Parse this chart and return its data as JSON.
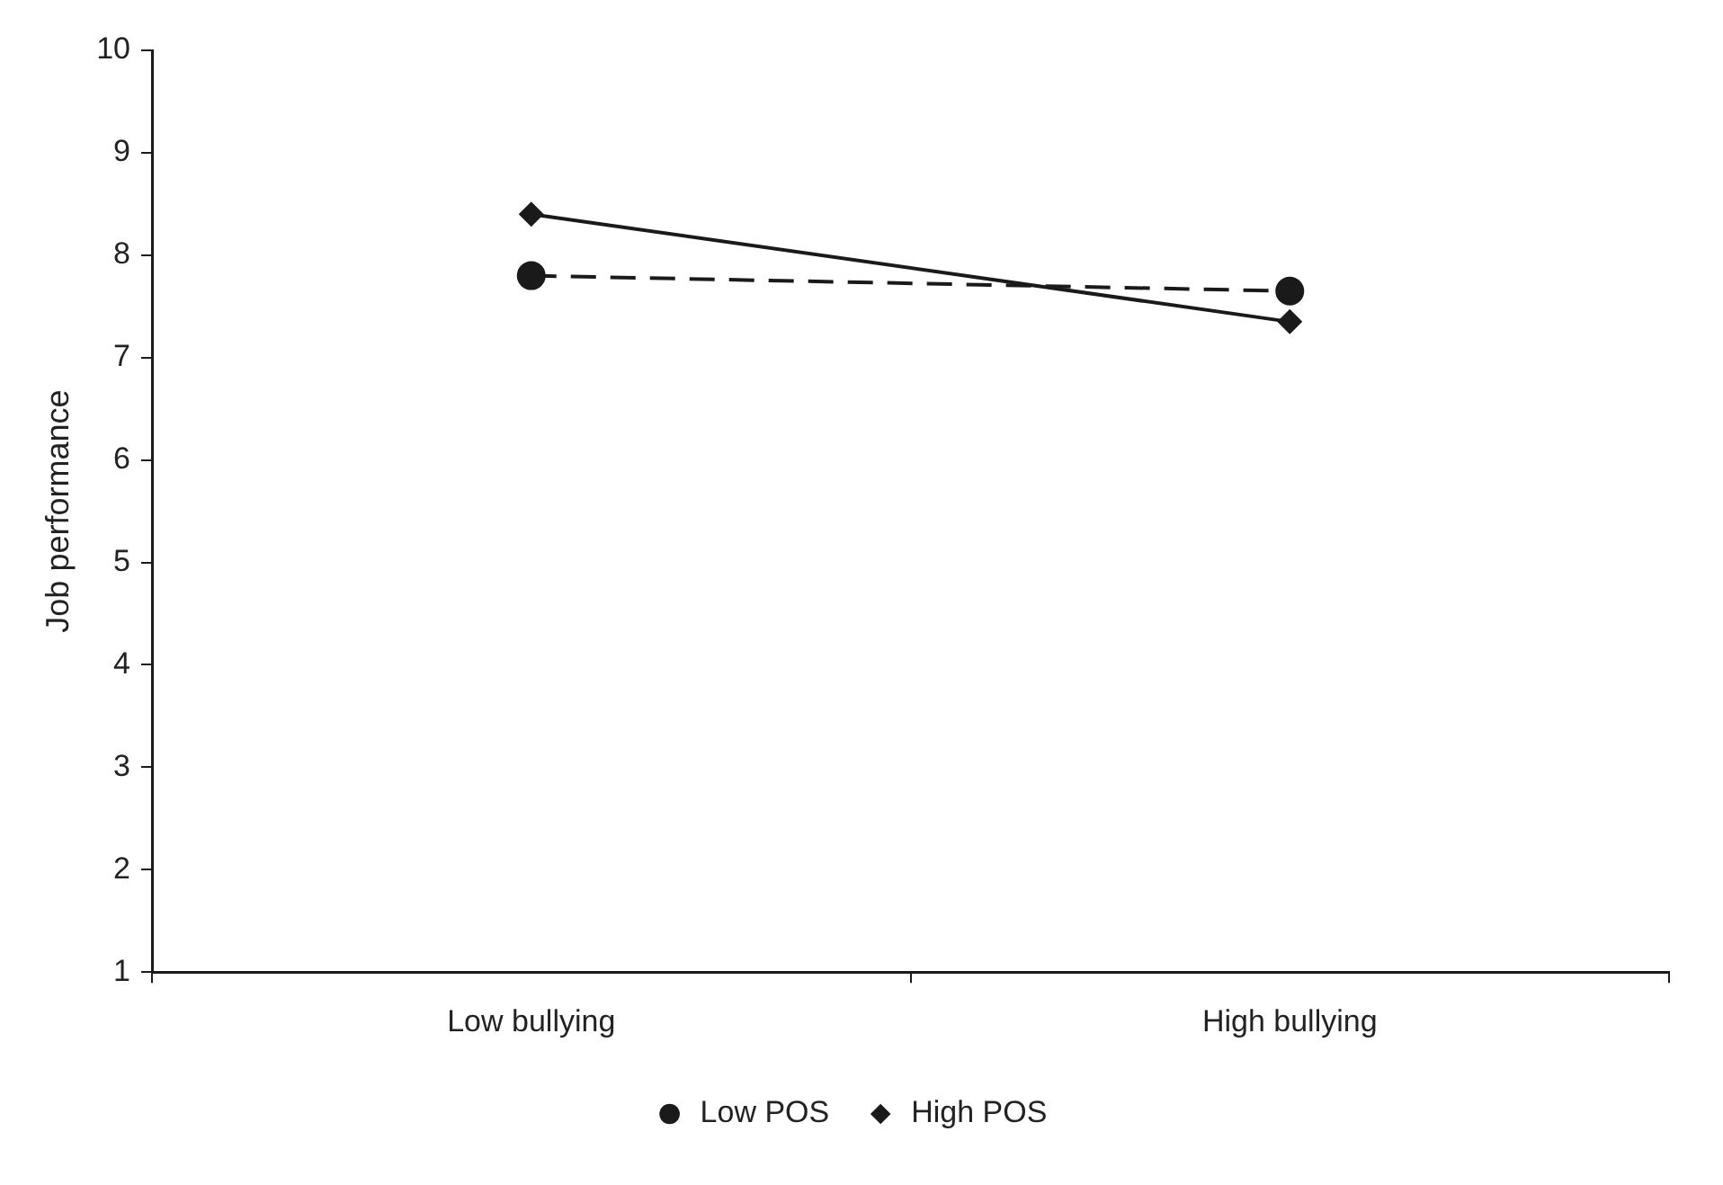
{
  "chart_data": {
    "type": "line",
    "ylabel": "Job performance",
    "categories": [
      "Low bullying",
      "High bullying"
    ],
    "series": [
      {
        "name": "Low POS",
        "color": "#1a1a1a",
        "values": [
          7.8,
          7.65
        ],
        "marker": "circle",
        "line_style": "dashed"
      },
      {
        "name": "High POS",
        "color": "#1a1a1a",
        "values": [
          8.4,
          7.35
        ],
        "marker": "diamond",
        "line_style": "solid"
      }
    ],
    "ylim": [
      1,
      10
    ],
    "yticks": [
      1,
      2,
      3,
      4,
      5,
      6,
      7,
      8,
      9,
      10
    ],
    "grid": false,
    "legend": "bottom"
  }
}
